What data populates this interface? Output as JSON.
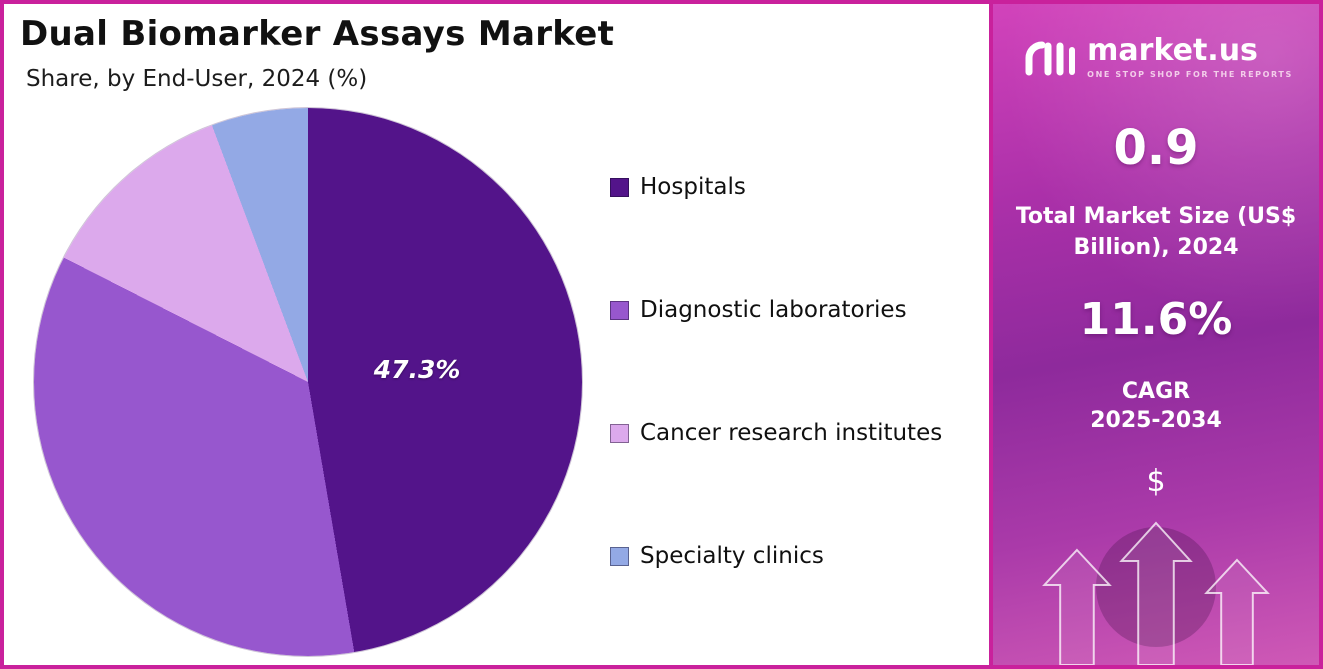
{
  "chart_data": {
    "type": "pie",
    "title": "Dual Biomarker Assays Market",
    "subtitle": "Share, by End-User, 2024 (%)",
    "unit": "%",
    "legend_position": "right",
    "data_label": "47.3%",
    "slices": [
      {
        "label": "Hospitals",
        "value": 47.3,
        "color": "#53148a"
      },
      {
        "label": "Diagnostic laboratories",
        "value": 35.2,
        "color": "#9757ce"
      },
      {
        "label": "Cancer research institutes",
        "value": 11.8,
        "color": "#dca9ec"
      },
      {
        "label": "Specialty clinics",
        "value": 5.7,
        "color": "#93a9e5"
      }
    ]
  },
  "sidebar": {
    "logo_text": "market.us",
    "logo_tagline": "ONE STOP SHOP FOR THE REPORTS",
    "market_size_value": "0.9",
    "market_size_label": "Total Market Size (US$ Billion), 2024",
    "cagr_value": "11.6%",
    "cagr_label": "CAGR",
    "cagr_period": "2025-2034",
    "currency_symbol": "$"
  },
  "colors": {
    "border": "#c9219c",
    "sidebar_top": "#d243bb",
    "sidebar_mid": "#8e2a9c",
    "title_text": "#111111"
  }
}
